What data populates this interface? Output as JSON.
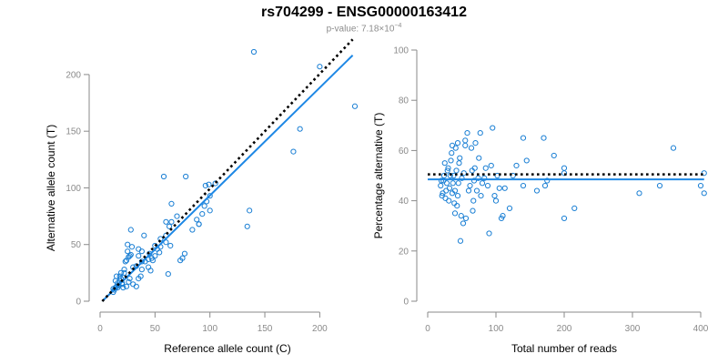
{
  "figure": {
    "title": "rs704299 - ENSG00000163412",
    "subtitle_prefix": "p-value: 7.18×10",
    "subtitle_exponent": "−4"
  },
  "colors": {
    "points": "#1a7fd4",
    "fit_line": "#1e88e5",
    "reference_line": "#000000",
    "axis": "#8a8a8a"
  },
  "chart_data": [
    {
      "type": "scatter",
      "title": "",
      "xlabel": "Reference allele count (C)",
      "ylabel": "Alternative allele count (T)",
      "xlim": [
        0,
        232
      ],
      "ylim": [
        0,
        220
      ],
      "xticks": [
        0,
        50,
        100,
        150,
        200
      ],
      "yticks": [
        0,
        50,
        100,
        150,
        200
      ],
      "grid": false,
      "lines": [
        {
          "name": "regression fit",
          "style": "solid",
          "points": [
            [
              2,
              0
            ],
            [
              230,
              217
            ]
          ]
        },
        {
          "name": "expected 1:1",
          "style": "dotted",
          "points": [
            [
              2,
              0
            ],
            [
              230,
              231
            ]
          ]
        }
      ],
      "points": [
        [
          140,
          220
        ],
        [
          200,
          207
        ],
        [
          232,
          172
        ],
        [
          182,
          152
        ],
        [
          176,
          132
        ],
        [
          105,
          104
        ],
        [
          58,
          110
        ],
        [
          78,
          110
        ],
        [
          96,
          102
        ],
        [
          99,
          103
        ],
        [
          100,
          93
        ],
        [
          97,
          88
        ],
        [
          100,
          80
        ],
        [
          136,
          80
        ],
        [
          134,
          66
        ],
        [
          84,
          63
        ],
        [
          88,
          72
        ],
        [
          90,
          68
        ],
        [
          65,
          86
        ],
        [
          65,
          70
        ],
        [
          70,
          75
        ],
        [
          95,
          84
        ],
        [
          93,
          77
        ],
        [
          60,
          70
        ],
        [
          63,
          66
        ],
        [
          55,
          55
        ],
        [
          60,
          52
        ],
        [
          60,
          58
        ],
        [
          55,
          48
        ],
        [
          52,
          46
        ],
        [
          50,
          40
        ],
        [
          45,
          42
        ],
        [
          48,
          36
        ],
        [
          44,
          37
        ],
        [
          40,
          58
        ],
        [
          38,
          44
        ],
        [
          38,
          35
        ],
        [
          35,
          46
        ],
        [
          35,
          40
        ],
        [
          33,
          31
        ],
        [
          30,
          30
        ],
        [
          29,
          48
        ],
        [
          28,
          41
        ],
        [
          27,
          40
        ],
        [
          26,
          39
        ],
        [
          25,
          50
        ],
        [
          25,
          44
        ],
        [
          24,
          36
        ],
        [
          23,
          35
        ],
        [
          28,
          63
        ],
        [
          22,
          28
        ],
        [
          22,
          25
        ],
        [
          21,
          21
        ],
        [
          20,
          16
        ],
        [
          19,
          25
        ],
        [
          19,
          20
        ],
        [
          18,
          18
        ],
        [
          17,
          14
        ],
        [
          16,
          16
        ],
        [
          16,
          12
        ],
        [
          15,
          13
        ],
        [
          14,
          12
        ],
        [
          13,
          10
        ],
        [
          12,
          8
        ],
        [
          12,
          11
        ],
        [
          14,
          18
        ],
        [
          15,
          22
        ],
        [
          18,
          22
        ],
        [
          20,
          15
        ],
        [
          21,
          12
        ],
        [
          24,
          13
        ],
        [
          26,
          17
        ],
        [
          27,
          20
        ],
        [
          30,
          15
        ],
        [
          33,
          13
        ],
        [
          35,
          20
        ],
        [
          37,
          22
        ],
        [
          38,
          28
        ],
        [
          41,
          35
        ],
        [
          44,
          30
        ],
        [
          46,
          27
        ],
        [
          47,
          38
        ],
        [
          50,
          49
        ],
        [
          54,
          43
        ],
        [
          62,
          24
        ],
        [
          64,
          49
        ],
        [
          73,
          36
        ],
        [
          75,
          38
        ],
        [
          77,
          42
        ],
        [
          90,
          68
        ]
      ]
    },
    {
      "type": "scatter",
      "title": "",
      "xlabel": "Total number of reads",
      "ylabel": "Percentage alternative (T)",
      "xlim": [
        0,
        400
      ],
      "ylim": [
        0,
        100
      ],
      "xticks": [
        0,
        100,
        200,
        300,
        400
      ],
      "yticks": [
        0,
        20,
        40,
        60,
        80,
        100
      ],
      "grid": false,
      "lines": [
        {
          "name": "mean fit",
          "style": "solid",
          "points": [
            [
              0,
              48.5
            ],
            [
              405,
              48.5
            ]
          ]
        },
        {
          "name": "expected 50%",
          "style": "dotted",
          "points": [
            [
              0,
              50.5
            ],
            [
              405,
              50.5
            ]
          ]
        }
      ],
      "points": [
        [
          360,
          61
        ],
        [
          405,
          51
        ],
        [
          405,
          43
        ],
        [
          400,
          46
        ],
        [
          340,
          46
        ],
        [
          310,
          43
        ],
        [
          215,
          37
        ],
        [
          200,
          33
        ],
        [
          200,
          51
        ],
        [
          200,
          53
        ],
        [
          185,
          58
        ],
        [
          170,
          65
        ],
        [
          175,
          48
        ],
        [
          172,
          46
        ],
        [
          160,
          44
        ],
        [
          145,
          56
        ],
        [
          140,
          65
        ],
        [
          140,
          46
        ],
        [
          130,
          54
        ],
        [
          125,
          50
        ],
        [
          120,
          37
        ],
        [
          113,
          45
        ],
        [
          110,
          34
        ],
        [
          108,
          33
        ],
        [
          105,
          45
        ],
        [
          102,
          50
        ],
        [
          100,
          40
        ],
        [
          98,
          42
        ],
        [
          95,
          69
        ],
        [
          93,
          54
        ],
        [
          90,
          27
        ],
        [
          88,
          46
        ],
        [
          85,
          53
        ],
        [
          83,
          49
        ],
        [
          80,
          47
        ],
        [
          78,
          42
        ],
        [
          77,
          67
        ],
        [
          75,
          57
        ],
        [
          74,
          49
        ],
        [
          72,
          44
        ],
        [
          70,
          63
        ],
        [
          69,
          53
        ],
        [
          68,
          48
        ],
        [
          67,
          40
        ],
        [
          66,
          36
        ],
        [
          65,
          52
        ],
        [
          64,
          61
        ],
        [
          62,
          46
        ],
        [
          60,
          44
        ],
        [
          58,
          67
        ],
        [
          56,
          33
        ],
        [
          55,
          64
        ],
        [
          55,
          62
        ],
        [
          53,
          51
        ],
        [
          52,
          31
        ],
        [
          50,
          49
        ],
        [
          49,
          34
        ],
        [
          48,
          24
        ],
        [
          47,
          57
        ],
        [
          46,
          55
        ],
        [
          45,
          47
        ],
        [
          44,
          42
        ],
        [
          43,
          38
        ],
        [
          42,
          52
        ],
        [
          41,
          61
        ],
        [
          40,
          44
        ],
        [
          39,
          39
        ],
        [
          38,
          50
        ],
        [
          37,
          47
        ],
        [
          36,
          43
        ],
        [
          35,
          59
        ],
        [
          34,
          56
        ],
        [
          33,
          50
        ],
        [
          32,
          45
        ],
        [
          31,
          40
        ],
        [
          30,
          53
        ],
        [
          29,
          52
        ],
        [
          28,
          47
        ],
        [
          27,
          44
        ],
        [
          26,
          41
        ],
        [
          25,
          55
        ],
        [
          24,
          50
        ],
        [
          23,
          48
        ],
        [
          22,
          43
        ],
        [
          21,
          42
        ],
        [
          20,
          48
        ],
        [
          19,
          46
        ],
        [
          36,
          62
        ],
        [
          40,
          35
        ],
        [
          44,
          63
        ]
      ]
    }
  ]
}
